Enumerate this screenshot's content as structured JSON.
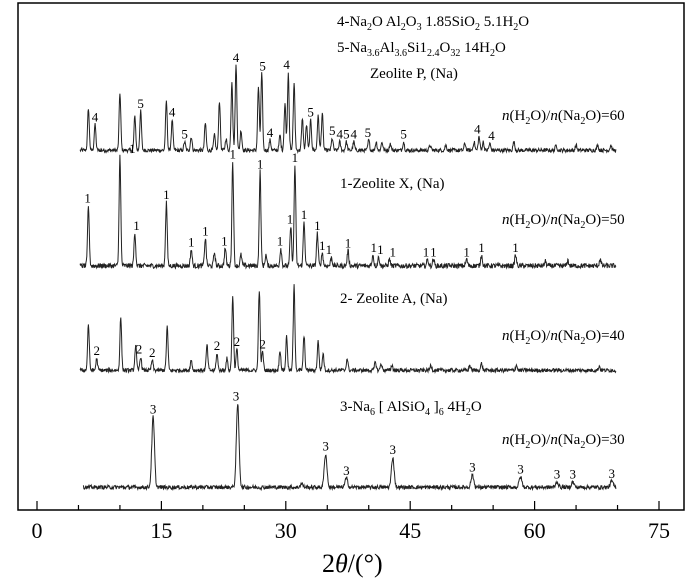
{
  "chart_data": {
    "type": "line",
    "xlabel": "2θ/(°)",
    "xlim": [
      0,
      75
    ],
    "x_ticks": [
      "0",
      "15",
      "30",
      "45",
      "60",
      "75"
    ],
    "yaxis": "none",
    "grid": false,
    "legend": {
      "line1": "4-Na2O Al2O3 1.85SiO2 5.1H2O",
      "line2": "5-Na3.6Al3.6Si12.4O32 14H2O",
      "line3": "Zeolite P, (Na)",
      "line4": "1-Zeolite X, (Na)",
      "line5": "2- Zeolite A, (Na)",
      "line6": "3-Na6 [ AlSiO4 ]6  4H2O"
    },
    "series": [
      {
        "name": "n(H2O)/n(Na2O)=60",
        "peaks": [
          {
            "x": 6.2,
            "h": 0.5,
            "label": "",
            "lx": 0
          },
          {
            "x": 7.0,
            "h": 0.3,
            "label": "4",
            "lx": 7.0
          },
          {
            "x": 10.0,
            "h": 0.68,
            "label": "",
            "lx": 0
          },
          {
            "x": 11.8,
            "h": 0.4,
            "label": "",
            "lx": 0
          },
          {
            "x": 12.5,
            "h": 0.46,
            "label": "5",
            "lx": 12.5
          },
          {
            "x": 15.6,
            "h": 0.58,
            "label": "",
            "lx": 0
          },
          {
            "x": 16.3,
            "h": 0.36,
            "label": "4",
            "lx": 16.3
          },
          {
            "x": 17.8,
            "h": 0.1,
            "label": "5",
            "lx": 17.8
          },
          {
            "x": 18.6,
            "h": 0.16,
            "label": "",
            "lx": 0
          },
          {
            "x": 20.3,
            "h": 0.32,
            "label": "",
            "lx": 0
          },
          {
            "x": 21.4,
            "h": 0.18,
            "label": "",
            "lx": 0
          },
          {
            "x": 22.0,
            "h": 0.58,
            "label": "",
            "lx": 0
          },
          {
            "x": 22.8,
            "h": 0.14,
            "label": "",
            "lx": 0
          },
          {
            "x": 23.5,
            "h": 0.82,
            "label": "",
            "lx": 0
          },
          {
            "x": 24.0,
            "h": 1.0,
            "label": "4",
            "lx": 24.0
          },
          {
            "x": 24.6,
            "h": 0.24,
            "label": "",
            "lx": 0
          },
          {
            "x": 26.7,
            "h": 0.75,
            "label": "",
            "lx": 0
          },
          {
            "x": 27.1,
            "h": 0.9,
            "label": "5",
            "lx": 27.2
          },
          {
            "x": 28.1,
            "h": 0.12,
            "label": "4",
            "lx": 28.1
          },
          {
            "x": 29.3,
            "h": 0.18,
            "label": "",
            "lx": 0
          },
          {
            "x": 29.9,
            "h": 0.55,
            "label": "",
            "lx": 0
          },
          {
            "x": 30.3,
            "h": 0.92,
            "label": "4",
            "lx": 30.1
          },
          {
            "x": 31.0,
            "h": 0.8,
            "label": "",
            "lx": 0
          },
          {
            "x": 32.0,
            "h": 0.38,
            "label": "",
            "lx": 0
          },
          {
            "x": 32.5,
            "h": 0.3,
            "label": "",
            "lx": 0
          },
          {
            "x": 33.0,
            "h": 0.36,
            "label": "5",
            "lx": 33.0
          },
          {
            "x": 33.9,
            "h": 0.4,
            "label": "",
            "lx": 0
          },
          {
            "x": 34.4,
            "h": 0.44,
            "label": "",
            "lx": 0
          },
          {
            "x": 35.6,
            "h": 0.14,
            "label": "5",
            "lx": 35.6
          },
          {
            "x": 36.5,
            "h": 0.1,
            "label": "4",
            "lx": 36.5
          },
          {
            "x": 37.3,
            "h": 0.1,
            "label": "5",
            "lx": 37.3
          },
          {
            "x": 38.2,
            "h": 0.1,
            "label": "4",
            "lx": 38.2
          },
          {
            "x": 40.0,
            "h": 0.12,
            "label": "5",
            "lx": 39.9
          },
          {
            "x": 40.9,
            "h": 0.1,
            "label": "",
            "lx": 0
          },
          {
            "x": 41.6,
            "h": 0.1,
            "label": "",
            "lx": 0
          },
          {
            "x": 42.6,
            "h": 0.08,
            "label": "",
            "lx": 0
          },
          {
            "x": 44.2,
            "h": 0.1,
            "label": "5",
            "lx": 44.2
          },
          {
            "x": 47.4,
            "h": 0.06,
            "label": "",
            "lx": 0
          },
          {
            "x": 49.3,
            "h": 0.06,
            "label": "",
            "lx": 0
          },
          {
            "x": 51.6,
            "h": 0.08,
            "label": "",
            "lx": 0
          },
          {
            "x": 52.7,
            "h": 0.1,
            "label": "",
            "lx": 0
          },
          {
            "x": 53.3,
            "h": 0.16,
            "label": "4",
            "lx": 53.1
          },
          {
            "x": 53.8,
            "h": 0.1,
            "label": "",
            "lx": 0
          },
          {
            "x": 54.6,
            "h": 0.08,
            "label": "4",
            "lx": 54.8
          },
          {
            "x": 57.5,
            "h": 0.1,
            "label": "",
            "lx": 0
          },
          {
            "x": 62.6,
            "h": 0.06,
            "label": "",
            "lx": 0
          },
          {
            "x": 65.0,
            "h": 0.06,
            "label": "",
            "lx": 0
          },
          {
            "x": 67.6,
            "h": 0.06,
            "label": "",
            "lx": 0
          },
          {
            "x": 69.2,
            "h": 0.06,
            "label": "",
            "lx": 0
          }
        ]
      },
      {
        "name": "n(H2O)/n(Na2O)=50",
        "peaks": [
          {
            "x": 6.2,
            "h": 0.55,
            "label": "1",
            "lx": 6.1
          },
          {
            "x": 10.0,
            "h": 1.0,
            "label": "1",
            "lx": 11.5
          },
          {
            "x": 11.8,
            "h": 0.3,
            "label": "1",
            "lx": 12.0
          },
          {
            "x": 15.6,
            "h": 0.58,
            "label": "1",
            "lx": 15.6
          },
          {
            "x": 18.6,
            "h": 0.15,
            "label": "1",
            "lx": 18.6
          },
          {
            "x": 20.3,
            "h": 0.25,
            "label": "1",
            "lx": 20.3
          },
          {
            "x": 21.4,
            "h": 0.12,
            "label": "",
            "lx": 0
          },
          {
            "x": 22.7,
            "h": 0.16,
            "label": "1",
            "lx": 22.6
          },
          {
            "x": 23.6,
            "h": 0.95,
            "label": "1",
            "lx": 23.6
          },
          {
            "x": 24.6,
            "h": 0.1,
            "label": "",
            "lx": 0
          },
          {
            "x": 26.9,
            "h": 0.86,
            "label": "1",
            "lx": 26.9
          },
          {
            "x": 27.6,
            "h": 0.1,
            "label": "",
            "lx": 0
          },
          {
            "x": 29.4,
            "h": 0.16,
            "label": "1",
            "lx": 29.3
          },
          {
            "x": 30.6,
            "h": 0.36,
            "label": "1",
            "lx": 30.5
          },
          {
            "x": 31.1,
            "h": 0.92,
            "label": "1",
            "lx": 31.1
          },
          {
            "x": 32.2,
            "h": 0.4,
            "label": "1",
            "lx": 32.2
          },
          {
            "x": 33.8,
            "h": 0.3,
            "label": "1",
            "lx": 33.8
          },
          {
            "x": 34.4,
            "h": 0.12,
            "label": "1",
            "lx": 34.4
          },
          {
            "x": 35.5,
            "h": 0.08,
            "label": "1",
            "lx": 35.2
          },
          {
            "x": 37.5,
            "h": 0.14,
            "label": "1",
            "lx": 37.5
          },
          {
            "x": 40.5,
            "h": 0.1,
            "label": "1",
            "lx": 40.6
          },
          {
            "x": 41.2,
            "h": 0.08,
            "label": "1",
            "lx": 41.4
          },
          {
            "x": 42.5,
            "h": 0.06,
            "label": "1",
            "lx": 42.9
          },
          {
            "x": 47.1,
            "h": 0.06,
            "label": "1",
            "lx": 46.9
          },
          {
            "x": 47.8,
            "h": 0.06,
            "label": "1",
            "lx": 47.8
          },
          {
            "x": 51.8,
            "h": 0.06,
            "label": "1",
            "lx": 51.8
          },
          {
            "x": 53.6,
            "h": 0.1,
            "label": "1",
            "lx": 53.6
          },
          {
            "x": 57.7,
            "h": 0.1,
            "label": "1",
            "lx": 57.7
          },
          {
            "x": 61.3,
            "h": 0.04,
            "label": "",
            "lx": 0
          },
          {
            "x": 64.0,
            "h": 0.05,
            "label": "",
            "lx": 0
          },
          {
            "x": 67.9,
            "h": 0.06,
            "label": "",
            "lx": 0
          }
        ]
      },
      {
        "name": "n(H2O)/n(Na2O)=40",
        "peaks": [
          {
            "x": 6.2,
            "h": 0.55,
            "label": "",
            "lx": 0
          },
          {
            "x": 7.2,
            "h": 0.14,
            "label": "2",
            "lx": 7.2
          },
          {
            "x": 10.1,
            "h": 0.62,
            "label": "",
            "lx": 0
          },
          {
            "x": 11.9,
            "h": 0.3,
            "label": "",
            "lx": 0
          },
          {
            "x": 12.5,
            "h": 0.16,
            "label": "2",
            "lx": 12.3
          },
          {
            "x": 13.9,
            "h": 0.12,
            "label": "2",
            "lx": 13.9
          },
          {
            "x": 15.7,
            "h": 0.52,
            "label": "",
            "lx": 0
          },
          {
            "x": 18.6,
            "h": 0.12,
            "label": "",
            "lx": 0
          },
          {
            "x": 20.5,
            "h": 0.3,
            "label": "",
            "lx": 0
          },
          {
            "x": 21.7,
            "h": 0.2,
            "label": "2",
            "lx": 21.7
          },
          {
            "x": 22.9,
            "h": 0.14,
            "label": "",
            "lx": 0
          },
          {
            "x": 23.6,
            "h": 0.88,
            "label": "",
            "lx": 0
          },
          {
            "x": 24.1,
            "h": 0.25,
            "label": "2",
            "lx": 24.1
          },
          {
            "x": 26.8,
            "h": 0.95,
            "label": "",
            "lx": 0
          },
          {
            "x": 27.2,
            "h": 0.22,
            "label": "2",
            "lx": 27.2
          },
          {
            "x": 29.3,
            "h": 0.24,
            "label": "",
            "lx": 0
          },
          {
            "x": 30.1,
            "h": 0.4,
            "label": "",
            "lx": 0
          },
          {
            "x": 31.0,
            "h": 1.0,
            "label": "",
            "lx": 0
          },
          {
            "x": 32.2,
            "h": 0.4,
            "label": "",
            "lx": 0
          },
          {
            "x": 33.9,
            "h": 0.34,
            "label": "",
            "lx": 0
          },
          {
            "x": 34.5,
            "h": 0.2,
            "label": "",
            "lx": 0
          },
          {
            "x": 37.4,
            "h": 0.14,
            "label": "",
            "lx": 0
          },
          {
            "x": 40.8,
            "h": 0.1,
            "label": "",
            "lx": 0
          },
          {
            "x": 41.5,
            "h": 0.08,
            "label": "",
            "lx": 0
          },
          {
            "x": 42.8,
            "h": 0.06,
            "label": "",
            "lx": 0
          },
          {
            "x": 47.5,
            "h": 0.06,
            "label": "",
            "lx": 0
          },
          {
            "x": 52.2,
            "h": 0.06,
            "label": "",
            "lx": 0
          },
          {
            "x": 53.6,
            "h": 0.08,
            "label": "",
            "lx": 0
          },
          {
            "x": 57.8,
            "h": 0.06,
            "label": "",
            "lx": 0
          },
          {
            "x": 67.8,
            "h": 0.05,
            "label": "",
            "lx": 0
          }
        ]
      },
      {
        "name": "n(H2O)/n(Na2O)=30",
        "peaks": [
          {
            "x": 14.0,
            "h": 0.8,
            "label": "3",
            "lx": 14.0
          },
          {
            "x": 24.2,
            "h": 0.95,
            "label": "3",
            "lx": 24.0
          },
          {
            "x": 31.9,
            "h": 0.04,
            "label": "",
            "lx": 0
          },
          {
            "x": 34.8,
            "h": 0.38,
            "label": "3",
            "lx": 34.8
          },
          {
            "x": 37.3,
            "h": 0.1,
            "label": "3",
            "lx": 37.3
          },
          {
            "x": 42.9,
            "h": 0.34,
            "label": "3",
            "lx": 42.9
          },
          {
            "x": 52.5,
            "h": 0.14,
            "label": "3",
            "lx": 52.5
          },
          {
            "x": 58.3,
            "h": 0.12,
            "label": "3",
            "lx": 58.3
          },
          {
            "x": 62.7,
            "h": 0.06,
            "label": "3",
            "lx": 62.7
          },
          {
            "x": 64.6,
            "h": 0.06,
            "label": "3",
            "lx": 64.6
          },
          {
            "x": 69.3,
            "h": 0.07,
            "label": "3",
            "lx": 69.3
          }
        ]
      }
    ]
  }
}
